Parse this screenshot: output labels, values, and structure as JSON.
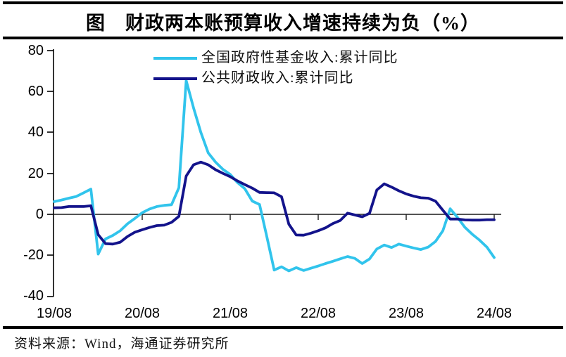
{
  "figure": {
    "title": "图　财政两本账预算收入增速持续为负（%）",
    "source": "资料来源：Wind，海通证券研究所"
  },
  "chart_data": {
    "type": "line",
    "title": "图 财政两本账预算收入增速持续为负（%）",
    "unit": "%",
    "grid": false,
    "legend_position": "top-center-inside",
    "y_axis": {
      "min": -40,
      "max": 80,
      "ticks": [
        80,
        60,
        40,
        20,
        0,
        -20,
        -40
      ]
    },
    "x_axis": {
      "tick_labels": [
        "19/08",
        "20/08",
        "21/08",
        "22/08",
        "23/08",
        "24/08"
      ],
      "range": [
        "2019/08",
        "2024/08"
      ]
    },
    "months": [
      "2019-08",
      "2019-09",
      "2019-10",
      "2019-11",
      "2019-12",
      "2020-01",
      "2020-02",
      "2020-03",
      "2020-04",
      "2020-05",
      "2020-06",
      "2020-07",
      "2020-08",
      "2020-09",
      "2020-10",
      "2020-11",
      "2020-12",
      "2021-01",
      "2021-02",
      "2021-03",
      "2021-04",
      "2021-05",
      "2021-06",
      "2021-07",
      "2021-08",
      "2021-09",
      "2021-10",
      "2021-11",
      "2021-12",
      "2022-01",
      "2022-02",
      "2022-03",
      "2022-04",
      "2022-05",
      "2022-06",
      "2022-07",
      "2022-08",
      "2022-09",
      "2022-10",
      "2022-11",
      "2022-12",
      "2023-01",
      "2023-02",
      "2023-03",
      "2023-04",
      "2023-05",
      "2023-06",
      "2023-07",
      "2023-08",
      "2023-09",
      "2023-10",
      "2023-11",
      "2023-12",
      "2024-01",
      "2024-02",
      "2024-03",
      "2024-04",
      "2024-05",
      "2024-06",
      "2024-07",
      "2024-08"
    ],
    "series": [
      {
        "name": "全国政府性基金收入:累计同比",
        "color": "#31C4EC",
        "values": [
          6.2,
          7.0,
          7.9,
          8.7,
          10.5,
          12.3,
          -19.4,
          -12.0,
          -10.3,
          -8.0,
          -4.6,
          -2.0,
          0.8,
          2.6,
          3.8,
          4.4,
          4.7,
          13.0,
          65.3,
          52.0,
          40.0,
          30.0,
          25.5,
          22.0,
          19.5,
          15.5,
          12.5,
          6.5,
          4.8,
          -11.0,
          -27.2,
          -25.6,
          -27.6,
          -26.0,
          -27.4,
          -26.3,
          -25.2,
          -24.0,
          -22.9,
          -21.7,
          -20.6,
          -21.5,
          -24.0,
          -21.8,
          -16.9,
          -15.0,
          -16.2,
          -14.5,
          -15.5,
          -16.4,
          -17.2,
          -16.0,
          -13.2,
          -8.0,
          2.7,
          -1.5,
          -6.3,
          -9.7,
          -12.6,
          -16.0,
          -21.1
        ]
      },
      {
        "name": "公共财政收入:累计同比",
        "color": "#13138B",
        "values": [
          3.2,
          3.3,
          3.8,
          3.8,
          3.8,
          4.2,
          -9.9,
          -14.3,
          -14.5,
          -13.6,
          -10.8,
          -8.7,
          -7.5,
          -6.4,
          -5.5,
          -5.3,
          -3.9,
          -1.0,
          18.7,
          24.2,
          25.5,
          24.2,
          21.8,
          20.0,
          18.4,
          16.3,
          14.5,
          12.8,
          10.7,
          10.6,
          10.5,
          8.6,
          -4.8,
          -10.1,
          -10.2,
          -9.2,
          -8.0,
          -6.6,
          -4.5,
          -3.0,
          0.6,
          -0.3,
          -1.2,
          0.5,
          11.9,
          14.9,
          13.3,
          11.5,
          10.0,
          8.9,
          8.1,
          7.9,
          6.4,
          2.0,
          -2.3,
          -2.3,
          -2.7,
          -2.8,
          -2.8,
          -2.6,
          -2.6
        ]
      }
    ]
  }
}
